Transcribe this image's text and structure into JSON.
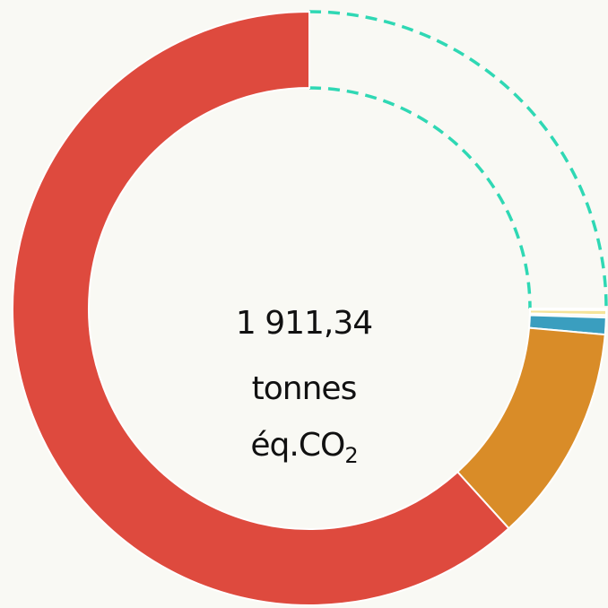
{
  "chart_data": {
    "type": "pie",
    "variant": "donut",
    "center_value": "1 911,34",
    "center_unit_line1": "tonnes",
    "center_unit_prefix": "éq.CO",
    "center_unit_subscript": "2",
    "total": 1911.34,
    "slices": [
      {
        "key": "remainder",
        "value": 478.0,
        "color": "#2fd8b4",
        "style": "dashed-outline"
      },
      {
        "key": "slice-a",
        "value": 1.6,
        "color": "#2fd8b4"
      },
      {
        "key": "slice-b",
        "value": 5.0,
        "color": "#f5e49a"
      },
      {
        "key": "slice-c",
        "value": 2.5,
        "color": "#f2f2e8"
      },
      {
        "key": "slice-d",
        "value": 17.5,
        "color": "#3a9ebf"
      },
      {
        "key": "slice-e",
        "value": 227.0,
        "color": "#d98c28"
      },
      {
        "key": "slice-f",
        "value": 1179.7,
        "color": "#de4a3e"
      }
    ]
  }
}
